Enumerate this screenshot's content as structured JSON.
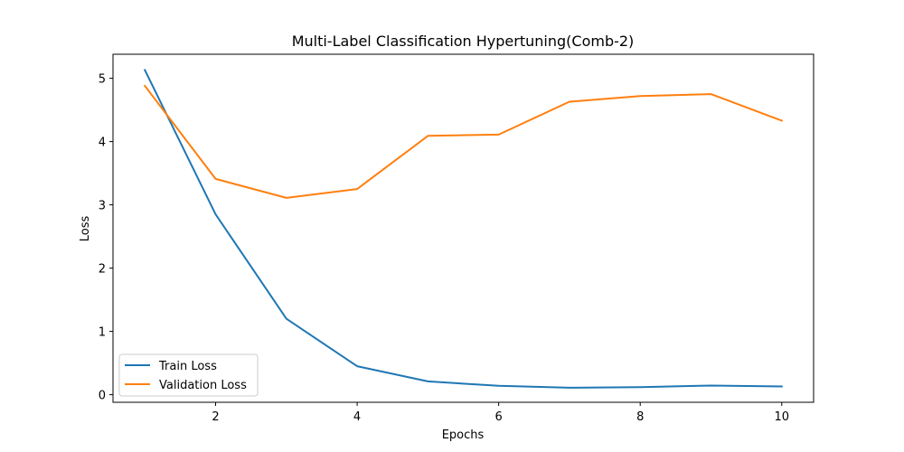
{
  "chart_data": {
    "type": "line",
    "title": "Multi-Label Classification Hypertuning(Comb-2)",
    "xlabel": "Epochs",
    "ylabel": "Loss",
    "x": [
      1,
      2,
      3,
      4,
      5,
      6,
      7,
      8,
      9,
      10
    ],
    "xlim": [
      0.55,
      10.45
    ],
    "ylim": [
      -0.12,
      5.38
    ],
    "xticks": [
      2,
      4,
      6,
      8,
      10
    ],
    "yticks": [
      0,
      1,
      2,
      3,
      4,
      5
    ],
    "grid": false,
    "legend_position": "lower-left",
    "series": [
      {
        "name": "Train Loss",
        "color": "#1f77b4",
        "values": [
          5.13,
          2.85,
          1.2,
          0.45,
          0.21,
          0.14,
          0.11,
          0.12,
          0.145,
          0.13
        ]
      },
      {
        "name": "Validation Loss",
        "color": "#ff7f0e",
        "values": [
          4.88,
          3.41,
          3.11,
          3.25,
          4.09,
          4.11,
          4.63,
          4.72,
          4.75,
          4.33
        ]
      }
    ]
  }
}
